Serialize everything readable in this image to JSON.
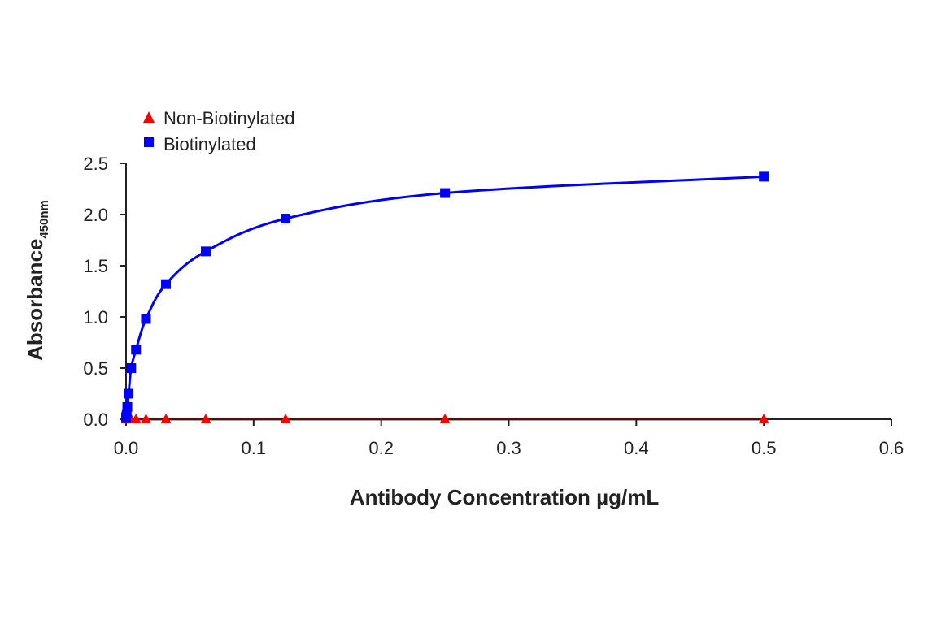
{
  "chart_data": {
    "type": "line",
    "xlabel": "Antibody Concentration µg/mL",
    "ylabel": "Absorbance",
    "ylabel_subscript": "450nm",
    "xlim": [
      0,
      0.6
    ],
    "ylim": [
      0,
      2.5
    ],
    "x_ticks": [
      "0.0",
      "0.1",
      "0.2",
      "0.3",
      "0.4",
      "0.5",
      "0.6"
    ],
    "y_ticks": [
      "0.0",
      "0.5",
      "1.0",
      "1.5",
      "2.0",
      "2.5"
    ],
    "grid": false,
    "legend_position": "top-left",
    "series": [
      {
        "name": "Non-Biotinylated",
        "color": "#ff0000",
        "marker": "triangle",
        "x": [
          0,
          0.0005,
          0.001,
          0.002,
          0.004,
          0.0078,
          0.0156,
          0.03125,
          0.0625,
          0.125,
          0.25,
          0.5
        ],
        "y": [
          0,
          0,
          0,
          0,
          0,
          0,
          0,
          0,
          0,
          0,
          0,
          0
        ]
      },
      {
        "name": "Biotinylated",
        "color": "#0000ff",
        "marker": "square",
        "x": [
          0,
          0.0005,
          0.001,
          0.002,
          0.004,
          0.0078,
          0.0156,
          0.03125,
          0.0625,
          0.125,
          0.25,
          0.5
        ],
        "y": [
          0.02,
          0.05,
          0.12,
          0.25,
          0.5,
          0.68,
          0.98,
          1.32,
          1.64,
          1.96,
          2.21,
          2.37
        ]
      }
    ]
  }
}
